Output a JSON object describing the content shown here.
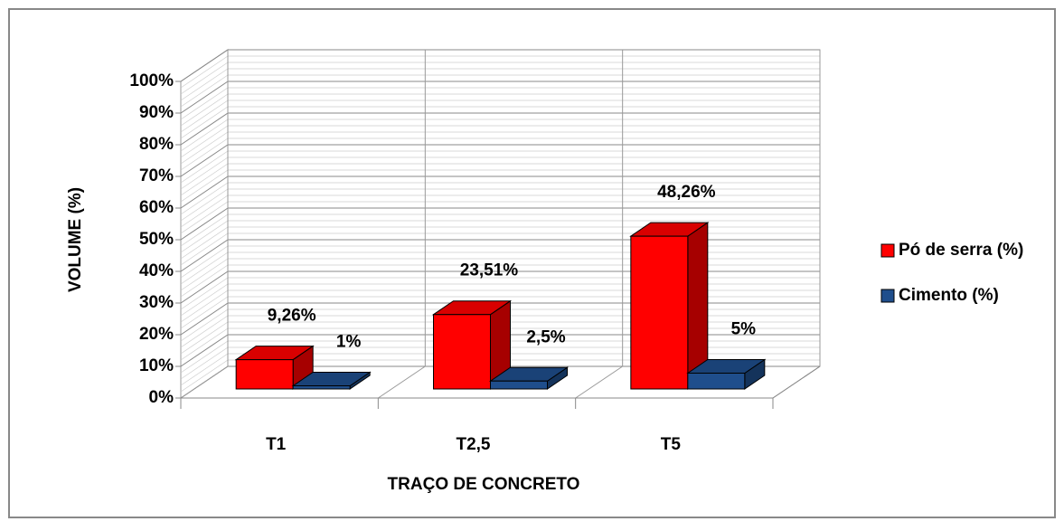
{
  "chart_data": {
    "type": "bar3d",
    "categories": [
      "T1",
      "T2,5",
      "T5"
    ],
    "series": [
      {
        "name": "Pó de serra (%)",
        "color": "#ff0000",
        "values": [
          9.26,
          23.51,
          48.26
        ],
        "value_labels": [
          "9,26%",
          "23,51%",
          "48,26%"
        ]
      },
      {
        "name": "Cimento (%)",
        "color": "#1f4e8c",
        "values": [
          1,
          2.5,
          5
        ],
        "value_labels": [
          "1%",
          "2,5%",
          "5%"
        ]
      }
    ],
    "ylim": [
      0,
      100
    ],
    "yticks": [
      {
        "value": 0,
        "label": "0%"
      },
      {
        "value": 10,
        "label": "10%"
      },
      {
        "value": 20,
        "label": "20%"
      },
      {
        "value": 30,
        "label": "30%"
      },
      {
        "value": 40,
        "label": "40%"
      },
      {
        "value": 50,
        "label": "50%"
      },
      {
        "value": 60,
        "label": "60%"
      },
      {
        "value": 70,
        "label": "70%"
      },
      {
        "value": 80,
        "label": "80%"
      },
      {
        "value": 90,
        "label": "90%"
      },
      {
        "value": 100,
        "label": "100%"
      }
    ],
    "x_label": "TRAÇO DE CONCRETO",
    "y_label": "VOLUME (%)",
    "grid": true,
    "legend": "right"
  }
}
